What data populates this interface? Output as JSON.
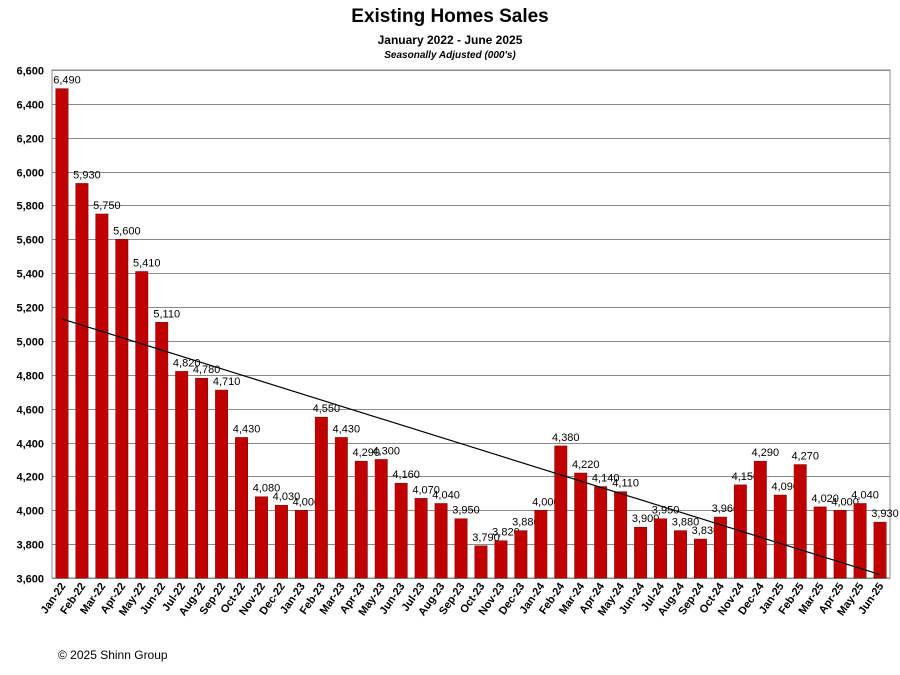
{
  "chart_data": {
    "type": "bar",
    "title": "Existing Homes Sales",
    "subtitle": "January 2022 - June 2025",
    "subtitle2": "Seasonally Adjusted (000's)",
    "categories": [
      "Jan-22",
      "Feb-22",
      "Mar-22",
      "Apr-22",
      "May-22",
      "Jun-22",
      "Jul-22",
      "Aug-22",
      "Sep-22",
      "Oct-22",
      "Nov-22",
      "Dec-22",
      "Jan-23",
      "Feb-23",
      "Mar-23",
      "Apr-23",
      "May-23",
      "Jun-23",
      "Jul-23",
      "Aug-23",
      "Sep-23",
      "Oct-23",
      "Nov-23",
      "Dec-23",
      "Jan-24",
      "Feb-24",
      "Mar-24",
      "Apr-24",
      "May-24",
      "Jun-24",
      "Jul-24",
      "Aug-24",
      "Sep-24",
      "Oct-24",
      "Nov-24",
      "Dec-24",
      "Jan-25",
      "Feb-25",
      "Mar-25",
      "Apr-25",
      "May-25",
      "Jun-25"
    ],
    "values": [
      6490,
      5930,
      5750,
      5600,
      5410,
      5110,
      4820,
      4780,
      4710,
      4430,
      4080,
      4030,
      4000,
      4550,
      4430,
      4290,
      4300,
      4160,
      4070,
      4040,
      3950,
      3790,
      3820,
      3880,
      4000,
      4380,
      4220,
      4140,
      4110,
      3900,
      3950,
      3880,
      3830,
      3960,
      4150,
      4290,
      4090,
      4270,
      4020,
      4000,
      4040,
      3930
    ],
    "data_labels": [
      "6,490",
      "5,930",
      "5,750",
      "5,600",
      "5,410",
      "5,110",
      "4,820",
      "4,780",
      "4,710",
      "4,430",
      "4,080",
      "4,030",
      "4,000",
      "4,550",
      "4,430",
      "4,290",
      "4,300",
      "4,160",
      "4,070",
      "4,040",
      "3,950",
      "3,790",
      "3,820",
      "3,880",
      "4,000",
      "4,380",
      "4,220",
      "4,140",
      "4,110",
      "3,900",
      "3,950",
      "3,880",
      "3,830",
      "3,960",
      "4,150",
      "4,290",
      "4,090",
      "4,270",
      "4,020",
      "4,000",
      "4,040",
      "3,930"
    ],
    "ylim": [
      3600,
      6600
    ],
    "yticks": [
      "3,600",
      "3,800",
      "4,000",
      "4,200",
      "4,400",
      "4,600",
      "4,800",
      "5,000",
      "5,200",
      "5,400",
      "5,600",
      "5,800",
      "6,000",
      "6,200",
      "6,400",
      "6,600"
    ],
    "ytick_values": [
      3600,
      3800,
      4000,
      4200,
      4400,
      4600,
      4800,
      5000,
      5200,
      5400,
      5600,
      5800,
      6000,
      6200,
      6400,
      6600
    ],
    "trendline": {
      "start": 5130,
      "end": 3620
    },
    "grid": true,
    "colors": {
      "bar": "#c00000",
      "bar_edge": "#7a0000",
      "grid": "#8c8c8c",
      "trend": "#000000"
    }
  },
  "footer": {
    "copyright": "© 2025 Shinn Group"
  }
}
